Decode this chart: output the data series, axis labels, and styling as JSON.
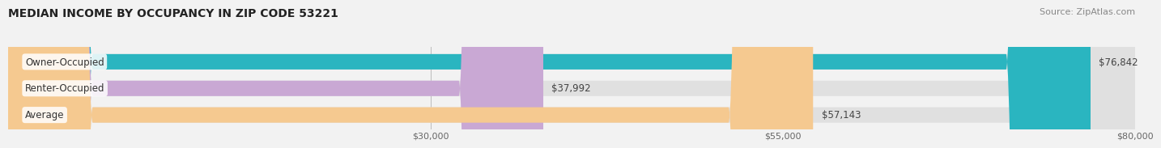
{
  "title": "MEDIAN INCOME BY OCCUPANCY IN ZIP CODE 53221",
  "source": "Source: ZipAtlas.com",
  "categories": [
    "Owner-Occupied",
    "Renter-Occupied",
    "Average"
  ],
  "values": [
    76842,
    37992,
    57143
  ],
  "bar_colors": [
    "#2ab5c0",
    "#c9a8d4",
    "#f5c990"
  ],
  "bar_labels": [
    "$76,842",
    "$37,992",
    "$57,143"
  ],
  "xlim": [
    0,
    80000
  ],
  "xticks": [
    30000,
    55000,
    80000
  ],
  "xticklabels": [
    "$30,000",
    "$55,000",
    "$80,000"
  ],
  "background_color": "#f2f2f2",
  "bar_bg_color": "#e0e0e0",
  "title_fontsize": 10,
  "source_fontsize": 8,
  "bar_height": 0.58,
  "label_fontsize": 8.5
}
